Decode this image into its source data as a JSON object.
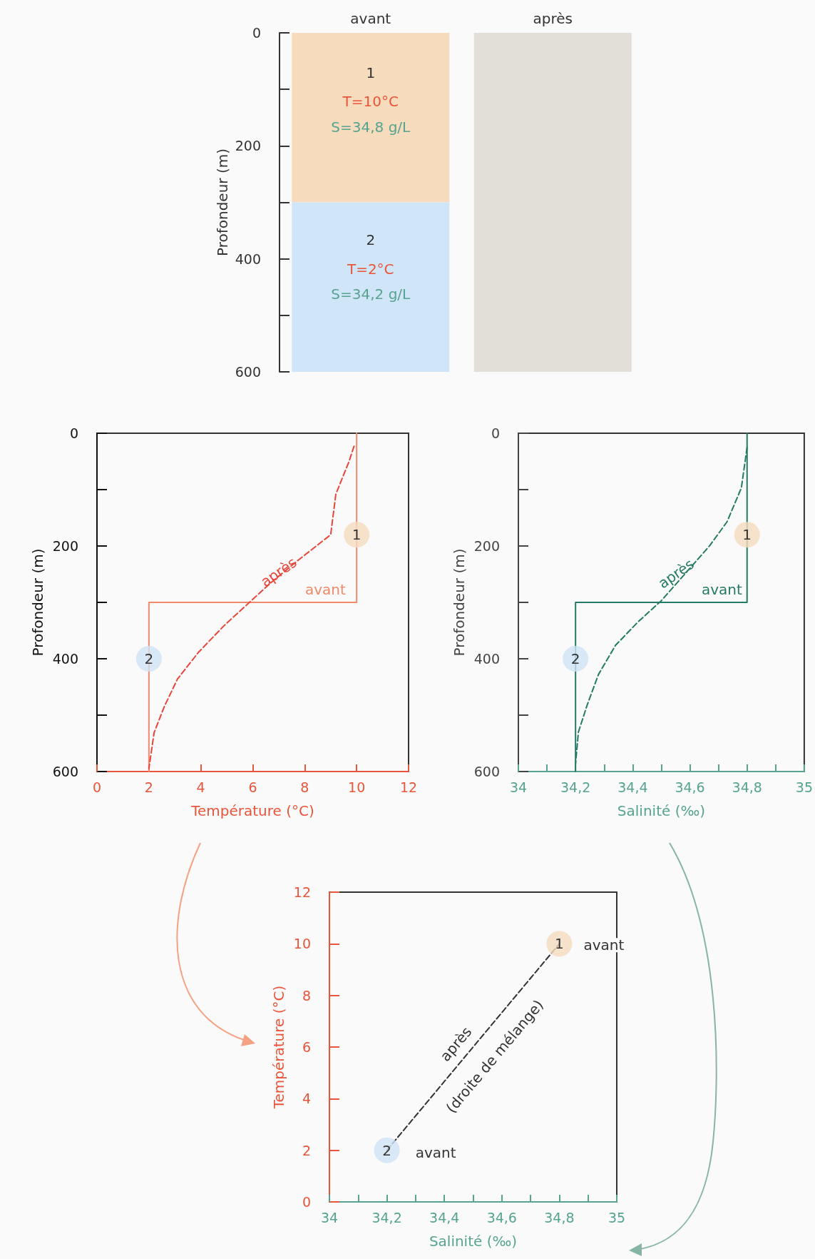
{
  "chart_data": [
    {
      "type": "bar",
      "stacked": true,
      "categories": [
        "avant",
        "après"
      ],
      "ylabel": "Profondeur (m)",
      "ylim": [
        600,
        0
      ],
      "yticks": [
        0,
        {
          "value": 100,
          "label": null
        },
        200,
        {
          "value": 300,
          "label": null
        },
        400,
        {
          "value": 500,
          "label": null
        },
        600
      ],
      "series": [
        {
          "color": "#f7dbbd",
          "values": [
            300,
            null
          ]
        },
        {
          "color": "#d0e5f7",
          "values": [
            300,
            null
          ]
        },
        {
          "color": "#e2dfd8",
          "values": [
            null,
            600
          ]
        }
      ],
      "annotations": [
        "1",
        "T=10°C",
        "S=34,8 g/L",
        "2",
        "T=2°C",
        "S=34,2 g/L"
      ]
    },
    {
      "type": "line",
      "xlabel": "Température (°C)",
      "ylabel": "Profondeur (m)",
      "xlim": [
        0,
        12
      ],
      "xticks": [
        0,
        2,
        4,
        6,
        8,
        10,
        12
      ],
      "ylim": [
        600,
        0
      ],
      "yticks": [
        0,
        {
          "value": 100,
          "label": null
        },
        200,
        {
          "value": 300,
          "label": null
        },
        400,
        {
          "value": 500,
          "label": null
        },
        600
      ],
      "series": [
        {
          "type": "line",
          "name": "avant",
          "color": "#f08a6a",
          "marker": "none",
          "line_style": "solid",
          "x": [
            10,
            10,
            2,
            2
          ],
          "values": [
            0,
            300,
            300,
            600
          ]
        },
        {
          "type": "line",
          "name": "après",
          "color": "#e8453a",
          "marker": "none",
          "line_style": "dashed",
          "x": [
            9.9,
            9.7,
            9.2,
            9.0,
            7.7,
            6.7,
            5.8,
            4.9,
            3.9,
            3.1,
            2.6,
            2.2,
            2.0
          ],
          "values": [
            23,
            51,
            108,
            180,
            227,
            265,
            303,
            341,
            389,
            436,
            484,
            531,
            595
          ]
        },
        {
          "type": "scatter",
          "marker": "circle",
          "colors": [
            "#f5dcbf",
            "#cfe4f5"
          ],
          "x": [
            10,
            2
          ],
          "values": [
            180,
            400
          ]
        }
      ],
      "annotations": [
        {
          "text": "1",
          "x": 10,
          "y": 180
        },
        {
          "text": "2",
          "x": 2,
          "y": 400
        }
      ]
    },
    {
      "type": "line",
      "xlabel": "Salinité (‰)",
      "ylabel": "Profondeur (m)",
      "xlim": [
        34,
        35
      ],
      "xticks": [
        34,
        {
          "value": 34.1,
          "label": null
        },
        {
          "value": 34.2,
          "label": "34,2"
        },
        {
          "value": 34.3,
          "label": null
        },
        {
          "value": 34.4,
          "label": "34,4"
        },
        {
          "value": 34.5,
          "label": null
        },
        {
          "value": 34.6,
          "label": "34,6"
        },
        {
          "value": 34.7,
          "label": null
        },
        {
          "value": 34.8,
          "label": "34,8"
        },
        {
          "value": 34.9,
          "label": null
        },
        35
      ],
      "ylim": [
        600,
        0
      ],
      "yticks": [
        0,
        {
          "value": 100,
          "label": null
        },
        200,
        {
          "value": 300,
          "label": null
        },
        400,
        {
          "value": 500,
          "label": null
        },
        600
      ],
      "series": [
        {
          "type": "line",
          "name": "avant",
          "color": "#257a64",
          "marker": "none",
          "line_style": "solid",
          "x": [
            34.8,
            34.8,
            34.2,
            34.2
          ],
          "values": [
            0,
            300,
            300,
            600
          ]
        },
        {
          "type": "line",
          "name": "après",
          "color": "#257a64",
          "marker": "none",
          "line_style": "dashed",
          "x": [
            34.8,
            34.78,
            34.73,
            34.67,
            34.58,
            34.5,
            34.42,
            34.34,
            34.28,
            34.24,
            34.21,
            34.2
          ],
          "values": [
            25,
            97,
            157,
            199,
            251,
            297,
            334,
            376,
            428,
            483,
            530,
            586
          ]
        },
        {
          "type": "scatter",
          "marker": "circle",
          "colors": [
            "#f5dcbf",
            "#cfe4f5"
          ],
          "x": [
            34.8,
            34.2
          ],
          "values": [
            180,
            400
          ]
        }
      ],
      "annotations": [
        {
          "text": "1",
          "x": 34.8,
          "y": 180
        },
        {
          "text": "2",
          "x": 34.2,
          "y": 400
        }
      ]
    },
    {
      "type": "line",
      "xlabel": "Salinité (‰)",
      "ylabel": "Température (°C)",
      "xlim": [
        34,
        35
      ],
      "xticks": [
        34,
        {
          "value": 34.1,
          "label": null
        },
        {
          "value": 34.2,
          "label": "34,2"
        },
        {
          "value": 34.3,
          "label": null
        },
        {
          "value": 34.4,
          "label": "34,4"
        },
        {
          "value": 34.5,
          "label": null
        },
        {
          "value": 34.6,
          "label": "34,6"
        },
        {
          "value": 34.7,
          "label": null
        },
        {
          "value": 34.8,
          "label": "34,8"
        },
        {
          "value": 34.9,
          "label": null
        },
        35
      ],
      "ylim": [
        0,
        12
      ],
      "yticks": [
        0,
        2,
        4,
        6,
        8,
        10,
        12
      ],
      "series": [
        {
          "type": "line",
          "name": "après",
          "color": "#333333",
          "marker": "none",
          "line_style": "dashed",
          "x": [
            34.2,
            34.8
          ],
          "values": [
            2,
            10
          ]
        },
        {
          "type": "scatter",
          "marker": "circle",
          "colors": [
            "#f5dcbf",
            "#cfe4f5"
          ],
          "x": [
            34.8,
            34.2
          ],
          "values": [
            10,
            2
          ]
        }
      ],
      "annotations": [
        "(droite de mélange)",
        "avant",
        "avant",
        {
          "text": "1",
          "x": 34.8,
          "y": 10
        },
        {
          "text": "2",
          "x": 34.2,
          "y": 2
        }
      ]
    }
  ]
}
